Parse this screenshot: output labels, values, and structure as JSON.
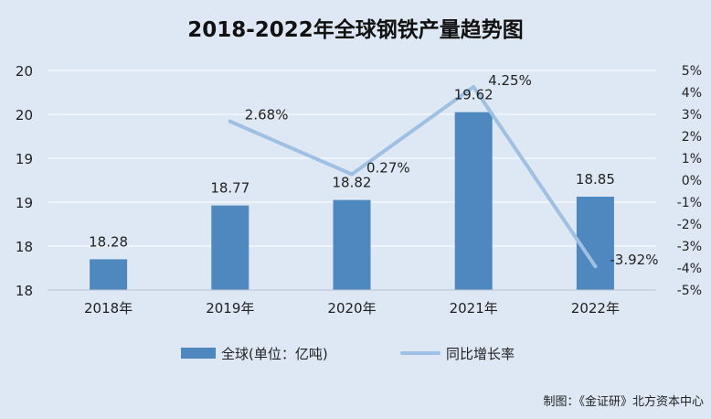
{
  "title": "2018-2022年全球钢铁产量趋势图",
  "credit": "制图：《金证研》北方资本中心",
  "colors": {
    "background": "#dde8f4",
    "bar": "#4f87bf",
    "line": "#9fc0e3",
    "grid": "#ffffff",
    "text": "#222222"
  },
  "chart_data": {
    "type": "bar",
    "title": "2018-2022年全球钢铁产量趋势图",
    "categories": [
      "2018年",
      "2019年",
      "2020年",
      "2021年",
      "2022年"
    ],
    "series": [
      {
        "name": "全球(单位：亿吨)",
        "type": "bar",
        "axis": "left",
        "values": [
          18.28,
          18.77,
          18.82,
          19.62,
          18.85
        ],
        "labels": [
          "18.28",
          "18.77",
          "18.82",
          "19.62",
          "18.85"
        ]
      },
      {
        "name": "同比增长率",
        "type": "line",
        "axis": "right",
        "values": [
          null,
          2.68,
          0.27,
          4.25,
          -3.92
        ],
        "labels": [
          "",
          "2.68%",
          "0.27%",
          "4.25%",
          "-3.92%"
        ]
      }
    ],
    "y_left": {
      "ylim": [
        18,
        20
      ],
      "tick_labels": [
        "20",
        "20",
        "19",
        "19",
        "18",
        "18"
      ]
    },
    "y_right": {
      "ylim": [
        -5,
        5
      ],
      "tick_labels": [
        "5%",
        "4%",
        "3%",
        "2%",
        "1%",
        "0%",
        "-1%",
        "-2%",
        "-3%",
        "-4%",
        "-5%"
      ]
    },
    "grid": true,
    "legend_position": "bottom"
  }
}
